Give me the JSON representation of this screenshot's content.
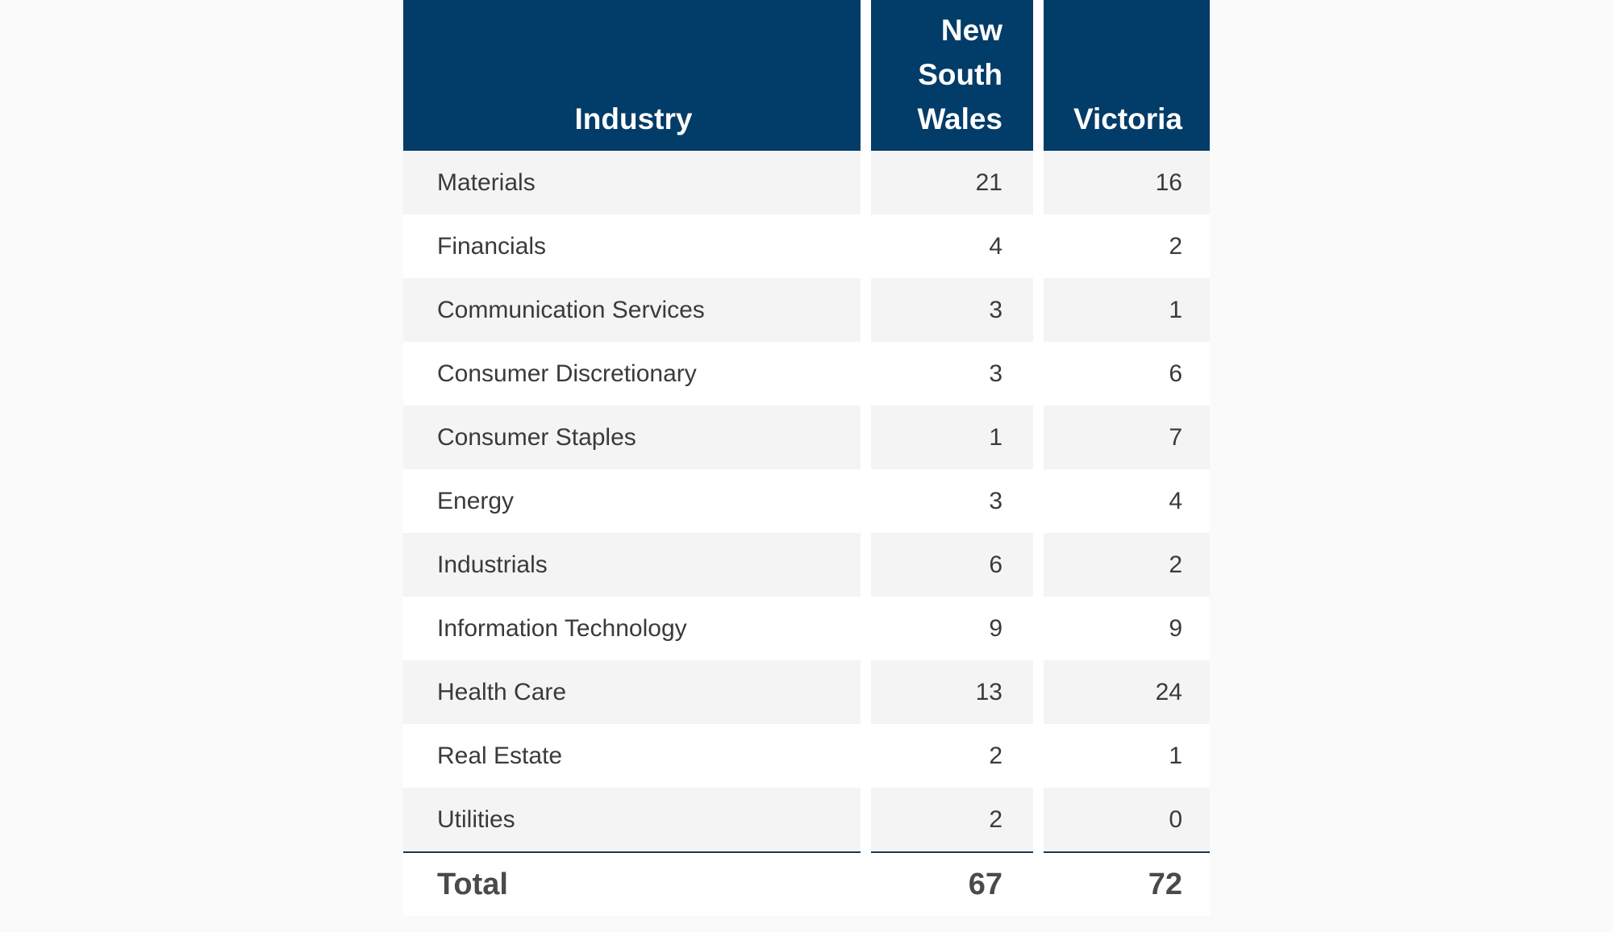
{
  "table": {
    "headers": {
      "industry": "Industry",
      "nsw_lines": [
        "New",
        "South",
        "Wales"
      ],
      "victoria": "Victoria"
    },
    "rows": [
      {
        "industry": "Materials",
        "nsw": "21",
        "vic": "16"
      },
      {
        "industry": "Financials",
        "nsw": "4",
        "vic": "2"
      },
      {
        "industry": "Communication Services",
        "nsw": "3",
        "vic": "1"
      },
      {
        "industry": "Consumer Discretionary",
        "nsw": "3",
        "vic": "6"
      },
      {
        "industry": "Consumer Staples",
        "nsw": "1",
        "vic": "7"
      },
      {
        "industry": "Energy",
        "nsw": "3",
        "vic": "4"
      },
      {
        "industry": "Industrials",
        "nsw": "6",
        "vic": "2"
      },
      {
        "industry": "Information Technology",
        "nsw": "9",
        "vic": "9"
      },
      {
        "industry": "Health Care",
        "nsw": "13",
        "vic": "24"
      },
      {
        "industry": "Real Estate",
        "nsw": "2",
        "vic": "1"
      },
      {
        "industry": "Utilities",
        "nsw": "2",
        "vic": "0"
      }
    ],
    "total": {
      "label": "Total",
      "nsw": "67",
      "vic": "72"
    }
  },
  "colors": {
    "header_bg": "#023c68",
    "header_text": "#ffffff",
    "stripe_bg": "#f4f4f4",
    "body_text": "#3a3a3a",
    "total_rule": "#1d3553"
  }
}
